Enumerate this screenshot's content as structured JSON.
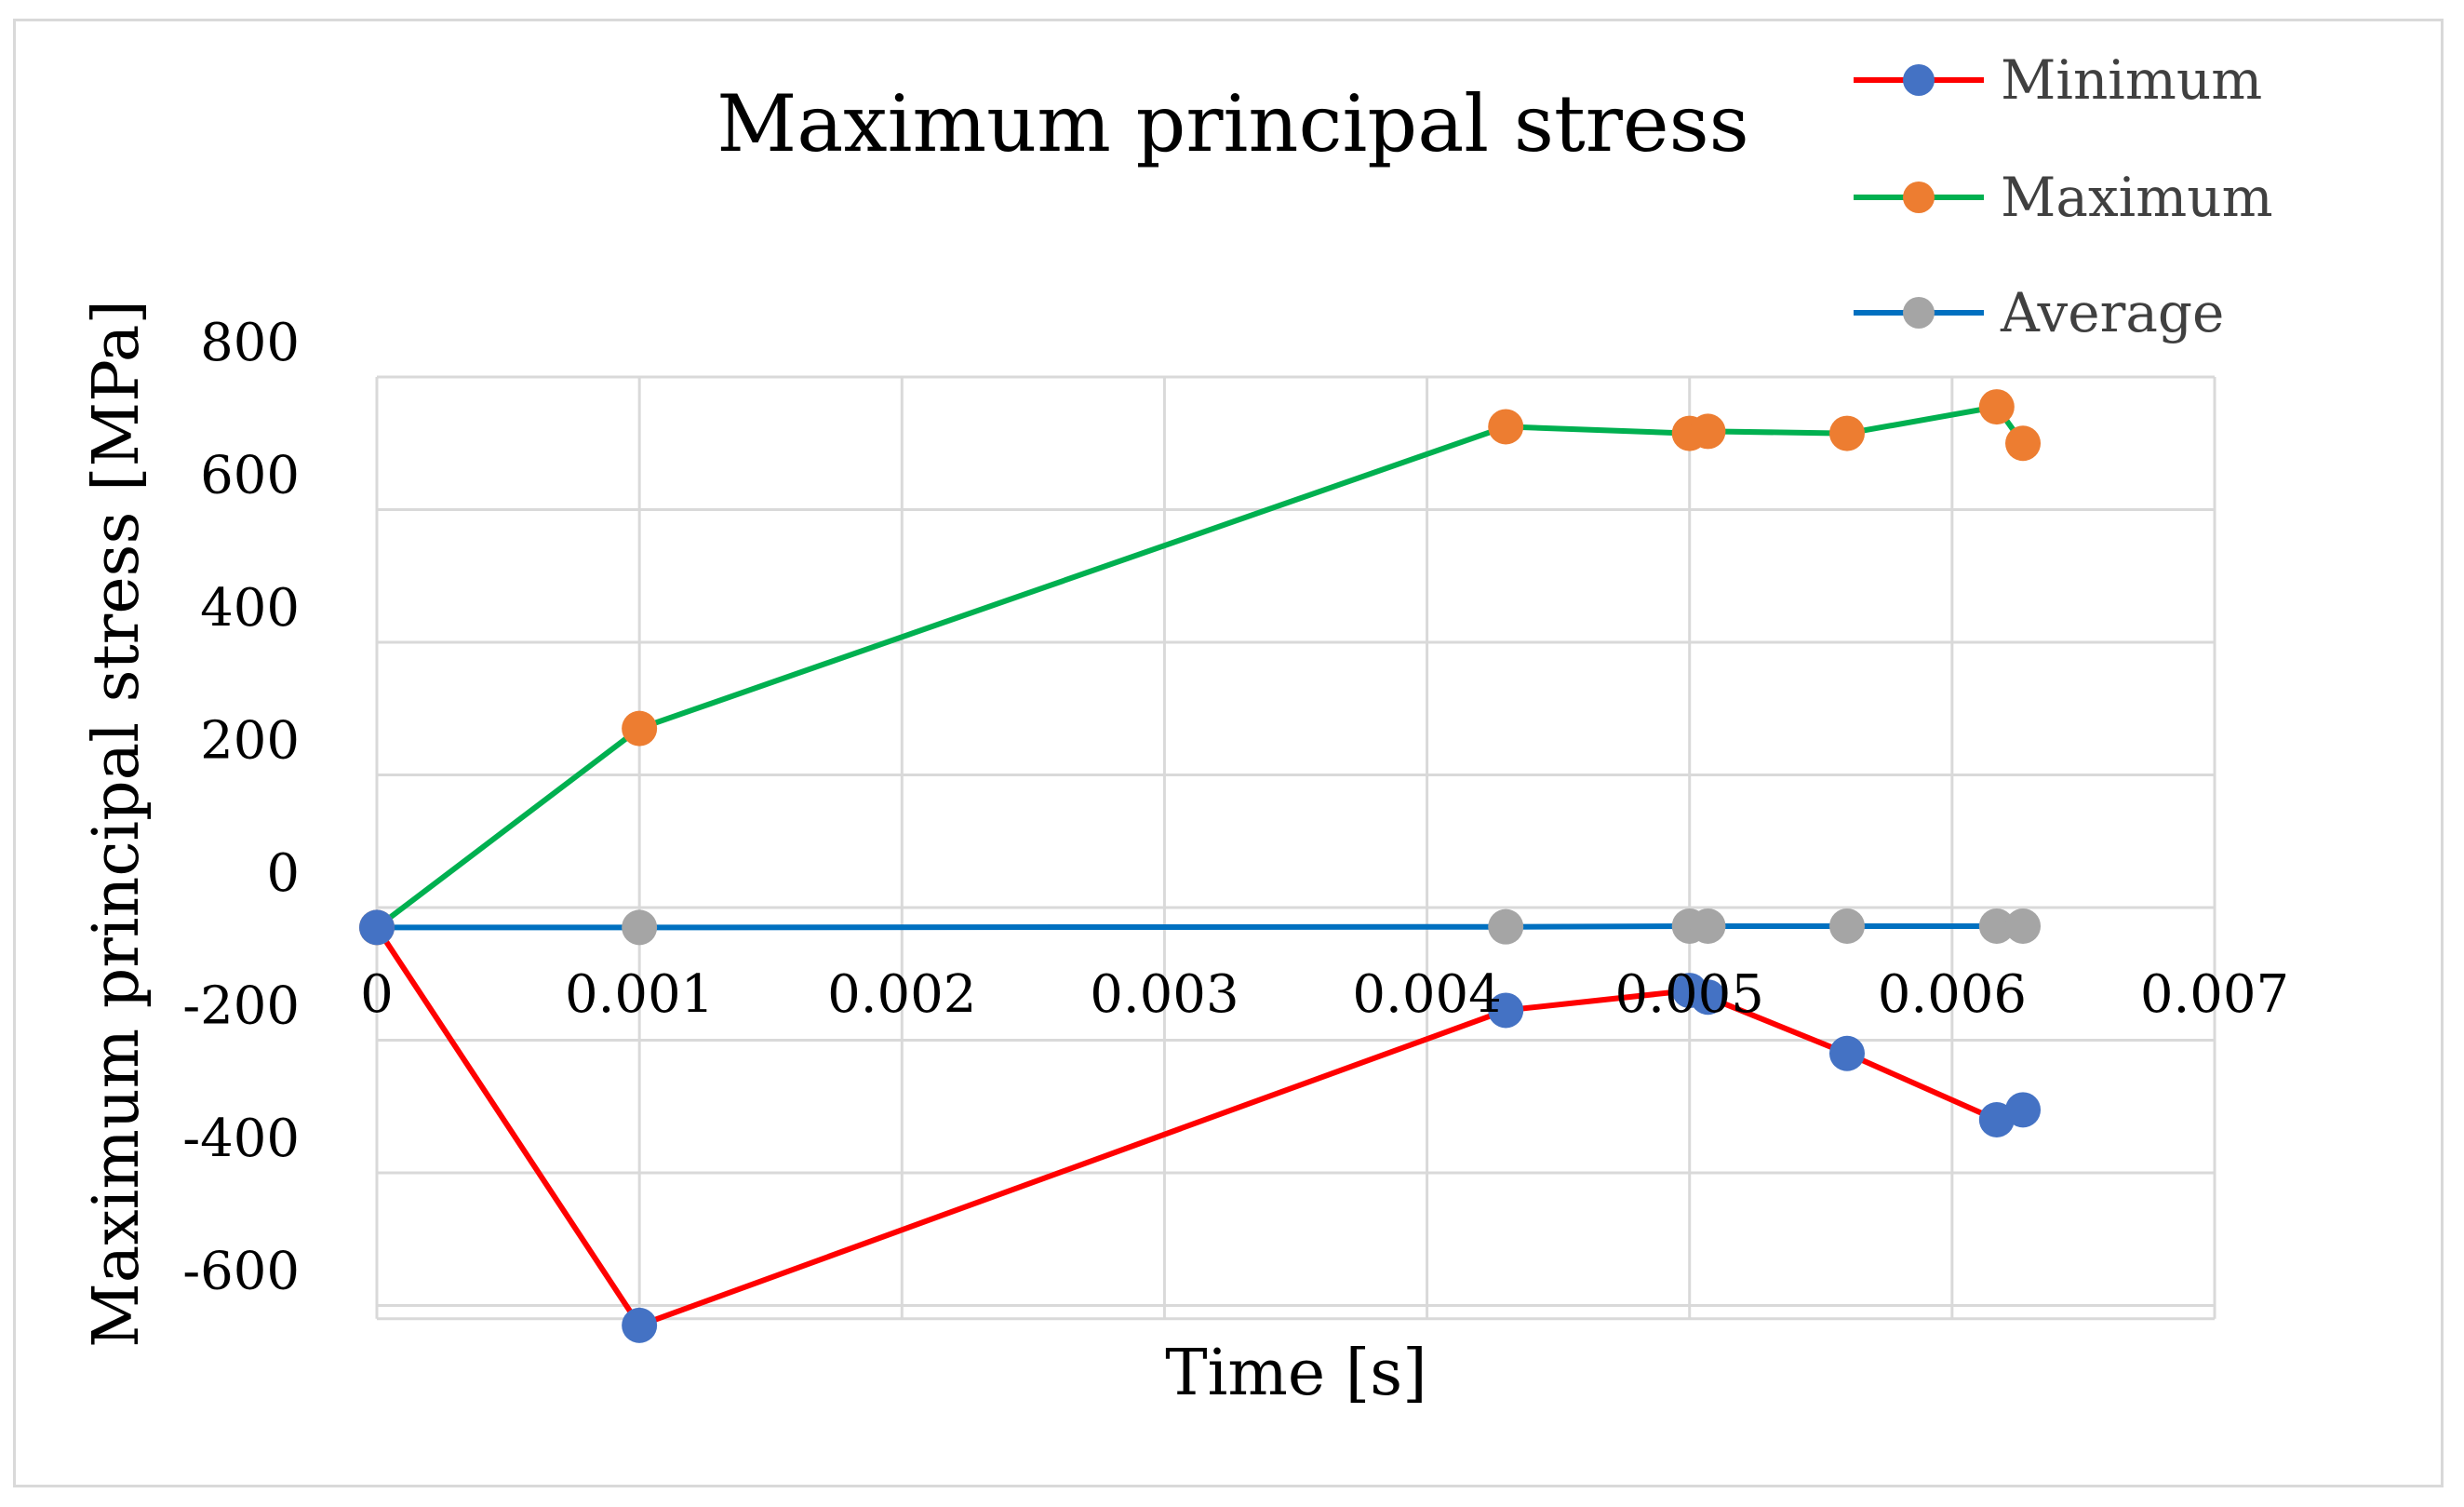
{
  "chart_data": {
    "type": "line",
    "title": "Maximum principal stress",
    "xlabel": "Time [s]",
    "ylabel": "Maximum principal stress [MPa]",
    "xlim": [
      0,
      0.007
    ],
    "ylim": [
      -620,
      800
    ],
    "x_ticks": [
      0,
      0.001,
      0.002,
      0.003,
      0.004,
      0.005,
      0.006,
      0.007
    ],
    "x_tick_labels": [
      "0",
      "0.001",
      "0.002",
      "0.003",
      "0.004",
      "0.005",
      "0.006",
      "0.007"
    ],
    "y_ticks": [
      800,
      600,
      400,
      200,
      0,
      -200,
      -400,
      -600
    ],
    "y_tick_labels": [
      "800",
      "600",
      "400",
      "200",
      "0",
      "-200",
      "-400",
      "-600"
    ],
    "y_gridlines": [
      800,
      600,
      400,
      200,
      0,
      -200,
      -400,
      -600
    ],
    "grid": true,
    "legend_position": "top-right",
    "series": [
      {
        "name": "Minimum",
        "line_color": "#ff0000",
        "marker_color": "#4472c4",
        "x": [
          0,
          0.001,
          0.0043,
          0.005,
          0.00507,
          0.0056,
          0.00617,
          0.00627
        ],
        "y": [
          -30,
          -630,
          -155,
          -125,
          -135,
          -220,
          -320,
          -305
        ]
      },
      {
        "name": "Maximum",
        "line_color": "#00b050",
        "marker_color": "#ed7d31",
        "x": [
          0,
          0.001,
          0.0043,
          0.005,
          0.00507,
          0.0056,
          0.00617,
          0.00627
        ],
        "y": [
          -30,
          270,
          725,
          715,
          718,
          715,
          755,
          700
        ]
      },
      {
        "name": "Average",
        "line_color": "#0070c0",
        "marker_color": "#a5a5a5",
        "x": [
          0,
          0.001,
          0.0043,
          0.005,
          0.00507,
          0.0056,
          0.00617,
          0.00627
        ],
        "y": [
          -30,
          -30,
          -29,
          -28,
          -28,
          -28,
          -28,
          -28
        ]
      }
    ]
  }
}
